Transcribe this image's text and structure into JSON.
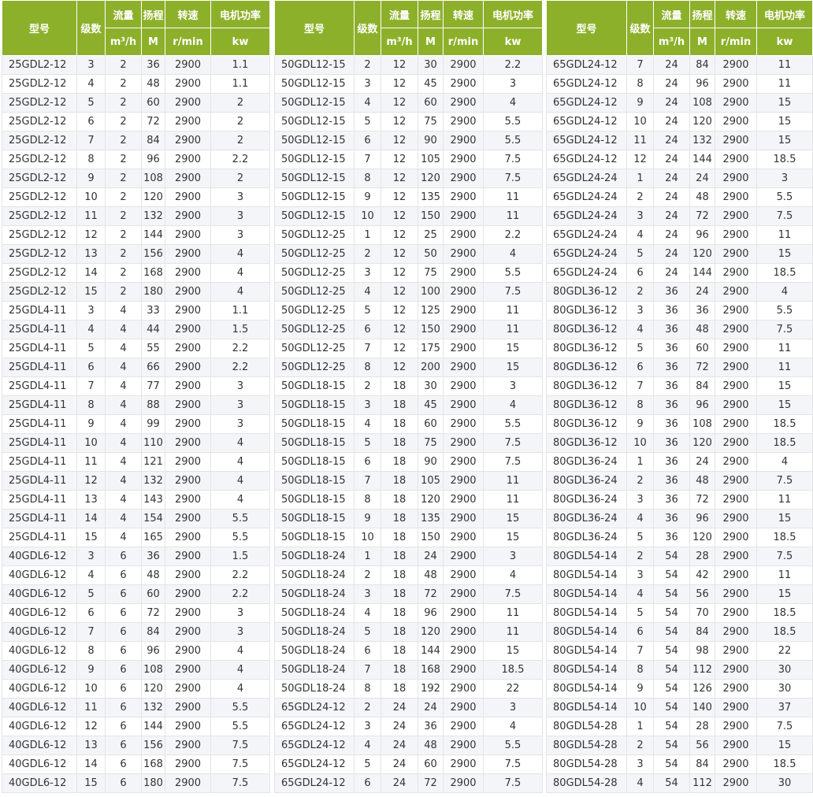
{
  "header": {
    "model": "型号",
    "stages": "级数",
    "flow": "流量",
    "head": "扬程",
    "speed": "转速",
    "power": "电机功率",
    "flow_unit": "m³/h",
    "head_unit": "M",
    "speed_unit": "r/min",
    "power_unit": "kw"
  },
  "colors": {
    "header_bg": "#8db02a",
    "header_text": "#ffffff",
    "stripe": "#f4f5f8"
  },
  "tables": [
    {
      "rows": [
        [
          "25GDL2-12",
          "3",
          "2",
          "36",
          "2900",
          "1.1"
        ],
        [
          "25GDL2-12",
          "4",
          "2",
          "48",
          "2900",
          "1.1"
        ],
        [
          "25GDL2-12",
          "5",
          "2",
          "60",
          "2900",
          "2"
        ],
        [
          "25GDL2-12",
          "6",
          "2",
          "72",
          "2900",
          "2"
        ],
        [
          "25GDL2-12",
          "7",
          "2",
          "84",
          "2900",
          "2"
        ],
        [
          "25GDL2-12",
          "8",
          "2",
          "96",
          "2900",
          "2.2"
        ],
        [
          "25GDL2-12",
          "9",
          "2",
          "108",
          "2900",
          "2"
        ],
        [
          "25GDL2-12",
          "10",
          "2",
          "120",
          "2900",
          "3"
        ],
        [
          "25GDL2-12",
          "11",
          "2",
          "132",
          "2900",
          "3"
        ],
        [
          "25GDL2-12",
          "12",
          "2",
          "144",
          "2900",
          "3"
        ],
        [
          "25GDL2-12",
          "13",
          "2",
          "156",
          "2900",
          "4"
        ],
        [
          "25GDL2-12",
          "14",
          "2",
          "168",
          "2900",
          "4"
        ],
        [
          "25GDL2-12",
          "15",
          "2",
          "180",
          "2900",
          "4"
        ],
        [
          "25GDL4-11",
          "3",
          "4",
          "33",
          "2900",
          "1.1"
        ],
        [
          "25GDL4-11",
          "4",
          "4",
          "44",
          "2900",
          "1.5"
        ],
        [
          "25GDL4-11",
          "5",
          "4",
          "55",
          "2900",
          "2.2"
        ],
        [
          "25GDL4-11",
          "6",
          "4",
          "66",
          "2900",
          "2.2"
        ],
        [
          "25GDL4-11",
          "7",
          "4",
          "77",
          "2900",
          "3"
        ],
        [
          "25GDL4-11",
          "8",
          "4",
          "88",
          "2900",
          "3"
        ],
        [
          "25GDL4-11",
          "9",
          "4",
          "99",
          "2900",
          "3"
        ],
        [
          "25GDL4-11",
          "10",
          "4",
          "110",
          "2900",
          "4"
        ],
        [
          "25GDL4-11",
          "11",
          "4",
          "121",
          "2900",
          "4"
        ],
        [
          "25GDL4-11",
          "12",
          "4",
          "132",
          "2900",
          "4"
        ],
        [
          "25GDL4-11",
          "13",
          "4",
          "143",
          "2900",
          "4"
        ],
        [
          "25GDL4-11",
          "14",
          "4",
          "154",
          "2900",
          "5.5"
        ],
        [
          "25GDL4-11",
          "15",
          "4",
          "165",
          "2900",
          "5.5"
        ],
        [
          "40GDL6-12",
          "3",
          "6",
          "36",
          "2900",
          "1.5"
        ],
        [
          "40GDL6-12",
          "4",
          "6",
          "48",
          "2900",
          "2.2"
        ],
        [
          "40GDL6-12",
          "5",
          "6",
          "60",
          "2900",
          "2.2"
        ],
        [
          "40GDL6-12",
          "6",
          "6",
          "72",
          "2900",
          "3"
        ],
        [
          "40GDL6-12",
          "7",
          "6",
          "84",
          "2900",
          "3"
        ],
        [
          "40GDL6-12",
          "8",
          "6",
          "96",
          "2900",
          "4"
        ],
        [
          "40GDL6-12",
          "9",
          "6",
          "108",
          "2900",
          "4"
        ],
        [
          "40GDL6-12",
          "10",
          "6",
          "120",
          "2900",
          "4"
        ],
        [
          "40GDL6-12",
          "11",
          "6",
          "132",
          "2900",
          "5.5"
        ],
        [
          "40GDL6-12",
          "12",
          "6",
          "144",
          "2900",
          "5.5"
        ],
        [
          "40GDL6-12",
          "13",
          "6",
          "156",
          "2900",
          "7.5"
        ],
        [
          "40GDL6-12",
          "14",
          "6",
          "168",
          "2900",
          "7.5"
        ],
        [
          "40GDL6-12",
          "15",
          "6",
          "180",
          "2900",
          "7.5"
        ]
      ]
    },
    {
      "rows": [
        [
          "50GDL12-15",
          "2",
          "12",
          "30",
          "2900",
          "2.2"
        ],
        [
          "50GDL12-15",
          "3",
          "12",
          "45",
          "2900",
          "3"
        ],
        [
          "50GDL12-15",
          "4",
          "12",
          "60",
          "2900",
          "4"
        ],
        [
          "50GDL12-15",
          "5",
          "12",
          "75",
          "2900",
          "5.5"
        ],
        [
          "50GDL12-15",
          "6",
          "12",
          "90",
          "2900",
          "5.5"
        ],
        [
          "50GDL12-15",
          "7",
          "12",
          "105",
          "2900",
          "7.5"
        ],
        [
          "50GDL12-15",
          "8",
          "12",
          "120",
          "2900",
          "7.5"
        ],
        [
          "50GDL12-15",
          "9",
          "12",
          "135",
          "2900",
          "11"
        ],
        [
          "50GDL12-15",
          "10",
          "12",
          "150",
          "2900",
          "11"
        ],
        [
          "50GDL12-25",
          "1",
          "12",
          "25",
          "2900",
          "2.2"
        ],
        [
          "50GDL12-25",
          "2",
          "12",
          "50",
          "2900",
          "4"
        ],
        [
          "50GDL12-25",
          "3",
          "12",
          "75",
          "2900",
          "5.5"
        ],
        [
          "50GDL12-25",
          "4",
          "12",
          "100",
          "2900",
          "7.5"
        ],
        [
          "50GDL12-25",
          "5",
          "12",
          "125",
          "2900",
          "11"
        ],
        [
          "50GDL12-25",
          "6",
          "12",
          "150",
          "2900",
          "11"
        ],
        [
          "50GDL12-25",
          "7",
          "12",
          "175",
          "2900",
          "15"
        ],
        [
          "50GDL12-25",
          "8",
          "12",
          "200",
          "2900",
          "15"
        ],
        [
          "50GDL18-15",
          "2",
          "18",
          "30",
          "2900",
          "3"
        ],
        [
          "50GDL18-15",
          "3",
          "18",
          "45",
          "2900",
          "4"
        ],
        [
          "50GDL18-15",
          "4",
          "18",
          "60",
          "2900",
          "5.5"
        ],
        [
          "50GDL18-15",
          "5",
          "18",
          "75",
          "2900",
          "7.5"
        ],
        [
          "50GDL18-15",
          "6",
          "18",
          "90",
          "2900",
          "7.5"
        ],
        [
          "50GDL18-15",
          "7",
          "18",
          "105",
          "2900",
          "11"
        ],
        [
          "50GDL18-15",
          "8",
          "18",
          "120",
          "2900",
          "11"
        ],
        [
          "50GDL18-15",
          "9",
          "18",
          "135",
          "2900",
          "15"
        ],
        [
          "50GDL18-15",
          "10",
          "18",
          "150",
          "2900",
          "15"
        ],
        [
          "50GDL18-24",
          "1",
          "18",
          "24",
          "2900",
          "3"
        ],
        [
          "50GDL18-24",
          "2",
          "18",
          "48",
          "2900",
          "4"
        ],
        [
          "50GDL18-24",
          "3",
          "18",
          "72",
          "2900",
          "7.5"
        ],
        [
          "50GDL18-24",
          "4",
          "18",
          "96",
          "2900",
          "11"
        ],
        [
          "50GDL18-24",
          "5",
          "18",
          "120",
          "2900",
          "11"
        ],
        [
          "50GDL18-24",
          "6",
          "18",
          "144",
          "2900",
          "15"
        ],
        [
          "50GDL18-24",
          "7",
          "18",
          "168",
          "2900",
          "18.5"
        ],
        [
          "50GDL18-24",
          "8",
          "18",
          "192",
          "2900",
          "22"
        ],
        [
          "65GDL24-12",
          "2",
          "24",
          "24",
          "2900",
          "3"
        ],
        [
          "65GDL24-12",
          "3",
          "24",
          "36",
          "2900",
          "4"
        ],
        [
          "65GDL24-12",
          "4",
          "24",
          "48",
          "2900",
          "5.5"
        ],
        [
          "65GDL24-12",
          "5",
          "24",
          "60",
          "2900",
          "7.5"
        ],
        [
          "65GDL24-12",
          "6",
          "24",
          "72",
          "2900",
          "7.5"
        ]
      ]
    },
    {
      "rows": [
        [
          "65GDL24-12",
          "7",
          "24",
          "84",
          "2900",
          "11"
        ],
        [
          "65GDL24-12",
          "8",
          "24",
          "96",
          "2900",
          "11"
        ],
        [
          "65GDL24-12",
          "9",
          "24",
          "108",
          "2900",
          "15"
        ],
        [
          "65GDL24-12",
          "10",
          "24",
          "120",
          "2900",
          "15"
        ],
        [
          "65GDL24-12",
          "11",
          "24",
          "132",
          "2900",
          "15"
        ],
        [
          "65GDL24-12",
          "12",
          "24",
          "144",
          "2900",
          "18.5"
        ],
        [
          "65GDL24-24",
          "1",
          "24",
          "24",
          "2900",
          "3"
        ],
        [
          "65GDL24-24",
          "2",
          "24",
          "48",
          "2900",
          "5.5"
        ],
        [
          "65GDL24-24",
          "3",
          "24",
          "72",
          "2900",
          "7.5"
        ],
        [
          "65GDL24-24",
          "4",
          "24",
          "96",
          "2900",
          "11"
        ],
        [
          "65GDL24-24",
          "5",
          "24",
          "120",
          "2900",
          "15"
        ],
        [
          "65GDL24-24",
          "6",
          "24",
          "144",
          "2900",
          "18.5"
        ],
        [
          "80GDL36-12",
          "2",
          "36",
          "24",
          "2900",
          "4"
        ],
        [
          "80GDL36-12",
          "3",
          "36",
          "36",
          "2900",
          "5.5"
        ],
        [
          "80GDL36-12",
          "4",
          "36",
          "48",
          "2900",
          "7.5"
        ],
        [
          "80GDL36-12",
          "5",
          "36",
          "60",
          "2900",
          "11"
        ],
        [
          "80GDL36-12",
          "6",
          "36",
          "72",
          "2900",
          "11"
        ],
        [
          "80GDL36-12",
          "7",
          "36",
          "84",
          "2900",
          "15"
        ],
        [
          "80GDL36-12",
          "8",
          "36",
          "96",
          "2900",
          "15"
        ],
        [
          "80GDL36-12",
          "9",
          "36",
          "108",
          "2900",
          "18.5"
        ],
        [
          "80GDL36-12",
          "10",
          "36",
          "120",
          "2900",
          "18.5"
        ],
        [
          "80GDL36-24",
          "1",
          "36",
          "24",
          "2900",
          "4"
        ],
        [
          "80GDL36-24",
          "2",
          "36",
          "48",
          "2900",
          "7.5"
        ],
        [
          "80GDL36-24",
          "3",
          "36",
          "72",
          "2900",
          "11"
        ],
        [
          "80GDL36-24",
          "4",
          "36",
          "96",
          "2900",
          "15"
        ],
        [
          "80GDL36-24",
          "5",
          "36",
          "120",
          "2900",
          "18.5"
        ],
        [
          "80GDL54-14",
          "2",
          "54",
          "28",
          "2900",
          "7.5"
        ],
        [
          "80GDL54-14",
          "3",
          "54",
          "42",
          "2900",
          "11"
        ],
        [
          "80GDL54-14",
          "4",
          "54",
          "56",
          "2900",
          "15"
        ],
        [
          "80GDL54-14",
          "5",
          "54",
          "70",
          "2900",
          "18.5"
        ],
        [
          "80GDL54-14",
          "6",
          "54",
          "84",
          "2900",
          "18.5"
        ],
        [
          "80GDL54-14",
          "7",
          "54",
          "98",
          "2900",
          "22"
        ],
        [
          "80GDL54-14",
          "8",
          "54",
          "112",
          "2900",
          "30"
        ],
        [
          "80GDL54-14",
          "9",
          "54",
          "126",
          "2900",
          "30"
        ],
        [
          "80GDL54-14",
          "10",
          "54",
          "140",
          "2900",
          "37"
        ],
        [
          "80GDL54-28",
          "1",
          "54",
          "28",
          "2900",
          "7.5"
        ],
        [
          "80GDL54-28",
          "2",
          "54",
          "56",
          "2900",
          "15"
        ],
        [
          "80GDL54-28",
          "3",
          "54",
          "84",
          "2900",
          "18.5"
        ],
        [
          "80GDL54-28",
          "4",
          "54",
          "112",
          "2900",
          "30"
        ]
      ]
    }
  ]
}
